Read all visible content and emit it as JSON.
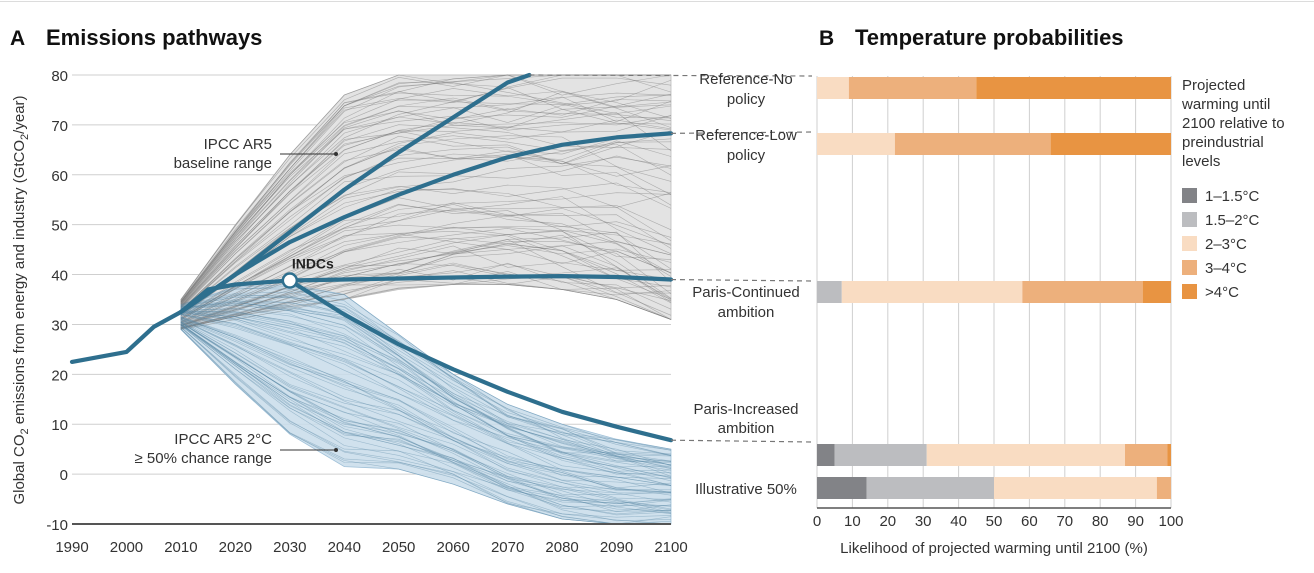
{
  "panel_a": {
    "letter": "A",
    "title": "Emissions pathways",
    "ylabel_pre": "Global CO",
    "ylabel_sub": "2",
    "ylabel_post": " emissions from energy and industry (GtCO",
    "ylabel_sub2": "2",
    "ylabel_end": "/year)",
    "baseline_label_line1": "IPCC AR5",
    "baseline_label_line2": "baseline range",
    "two_deg_label_line1": "IPCC AR5 2°C",
    "two_deg_label_line2": "≥ 50% chance range",
    "indc_label": "INDCs"
  },
  "panel_b": {
    "letter": "B",
    "title": "Temperature probabilities",
    "xlabel": "Likelihood of projected warming until 2100 (%)",
    "legend_title": [
      "Projected",
      "warming until",
      "2100 relative to",
      "preindustrial",
      "levels"
    ],
    "legend_items": [
      {
        "label": "1–1.5°C",
        "color": "#828387"
      },
      {
        "label": "1.5–2°C",
        "color": "#bcbdc0"
      },
      {
        "label": "2–3°C",
        "color": "#f9dcc2"
      },
      {
        "label": "3–4°C",
        "color": "#edb07c"
      },
      {
        "label": ">4°C",
        "color": "#e89442"
      }
    ]
  },
  "chart_data": [
    {
      "type": "line",
      "title": "Emissions pathways",
      "xlabel": "",
      "ylabel": "Global CO2 emissions from energy and industry (GtCO2/year)",
      "xlim": [
        1990,
        2100
      ],
      "ylim": [
        -10,
        80
      ],
      "x_ticks": [
        1990,
        2000,
        2010,
        2020,
        2030,
        2040,
        2050,
        2060,
        2070,
        2080,
        2090,
        2100
      ],
      "y_ticks": [
        -10,
        0,
        10,
        20,
        30,
        40,
        50,
        60,
        70,
        80
      ],
      "grid": "horizontal",
      "series": [
        {
          "name": "",
          "color": "#2e6f8e",
          "x": [
            1990,
            1995,
            2000,
            2005,
            2010
          ],
          "y": [
            22.5,
            23.5,
            24.5,
            29.5,
            32.5
          ]
        },
        {
          "name": "Reference-No policy",
          "color": "#2e6f8e",
          "x": [
            2010,
            2020,
            2030,
            2040,
            2050,
            2060,
            2070,
            2074
          ],
          "y": [
            32.5,
            40,
            48.5,
            57,
            64.5,
            71.5,
            78.5,
            80
          ]
        },
        {
          "name": "Reference-Low policy",
          "color": "#2e6f8e",
          "x": [
            2010,
            2020,
            2030,
            2040,
            2050,
            2060,
            2070,
            2080,
            2090,
            2100
          ],
          "y": [
            32.5,
            40,
            46.5,
            51.5,
            56,
            60,
            63.5,
            66,
            67.5,
            68.3
          ]
        },
        {
          "name": "Paris-Continued ambition",
          "color": "#2e6f8e",
          "x": [
            2010,
            2015,
            2020,
            2030,
            2040,
            2050,
            2060,
            2070,
            2080,
            2090,
            2100
          ],
          "y": [
            32.5,
            37,
            38,
            38.8,
            39,
            39.2,
            39.4,
            39.6,
            39.7,
            39.5,
            39
          ]
        },
        {
          "name": "Paris-Increased ambition",
          "color": "#2e6f8e",
          "x": [
            2030,
            2040,
            2050,
            2060,
            2070,
            2080,
            2090,
            2100
          ],
          "y": [
            38.8,
            32,
            26,
            21,
            16.5,
            12.5,
            9.5,
            6.8
          ]
        }
      ],
      "ranges": [
        {
          "name": "IPCC AR5 baseline range",
          "x": [
            2010,
            2020,
            2030,
            2040,
            2050,
            2060,
            2070,
            2080,
            2090,
            2100
          ],
          "upper": [
            35,
            50,
            64,
            76,
            80,
            80,
            80,
            80,
            80,
            80
          ],
          "lower": [
            29,
            31,
            33,
            35,
            37,
            38,
            38,
            37,
            35,
            31
          ]
        },
        {
          "name": "IPCC AR5 2°C ≥ 50% chance range",
          "x": [
            2010,
            2020,
            2030,
            2040,
            2050,
            2060,
            2070,
            2080,
            2090,
            2100
          ],
          "upper": [
            34,
            37.5,
            38,
            36,
            28,
            20,
            14,
            10,
            7,
            5
          ],
          "lower": [
            29,
            18,
            8,
            1.5,
            1,
            -2,
            -6,
            -9,
            -10,
            -10
          ]
        }
      ],
      "annotations": [
        {
          "text": "INDCs",
          "x": 2030,
          "y": 38.8
        }
      ]
    },
    {
      "type": "bar",
      "stacked": true,
      "orientation": "horizontal",
      "title": "Temperature probabilities",
      "xlabel": "Likelihood of projected warming until 2100 (%)",
      "xlim": [
        0,
        100
      ],
      "x_ticks": [
        0,
        10,
        20,
        30,
        40,
        50,
        60,
        70,
        80,
        90,
        100
      ],
      "grid": "vertical",
      "categories": [
        "Reference-No policy",
        "Reference-Low policy",
        "Paris-Continued ambition",
        "Paris-Increased ambition",
        "Illustrative 50%"
      ],
      "series": [
        {
          "name": "1–1.5°C",
          "color": "#828387",
          "values": [
            0,
            0,
            0,
            5,
            14
          ]
        },
        {
          "name": "1.5–2°C",
          "color": "#bcbdc0",
          "values": [
            0,
            0,
            7,
            26,
            36
          ]
        },
        {
          "name": "2–3°C",
          "color": "#f9dcc2",
          "values": [
            9,
            22,
            51,
            56,
            46
          ]
        },
        {
          "name": "3–4°C",
          "color": "#edb07c",
          "values": [
            36,
            44,
            34,
            12,
            4
          ]
        },
        {
          "name": ">4°C",
          "color": "#e89442",
          "values": [
            55,
            34,
            8,
            1,
            0
          ]
        }
      ],
      "legend": "right"
    }
  ],
  "row_labels": [
    {
      "line1": "Reference-No",
      "line2": "policy"
    },
    {
      "line1": "Reference-Low",
      "line2": "policy"
    },
    {
      "line1": "Paris-Continued",
      "line2": "ambition"
    },
    {
      "line1": "Paris-Increased",
      "line2": "ambition"
    },
    {
      "line1": "Illustrative 50%",
      "line2": ""
    }
  ]
}
